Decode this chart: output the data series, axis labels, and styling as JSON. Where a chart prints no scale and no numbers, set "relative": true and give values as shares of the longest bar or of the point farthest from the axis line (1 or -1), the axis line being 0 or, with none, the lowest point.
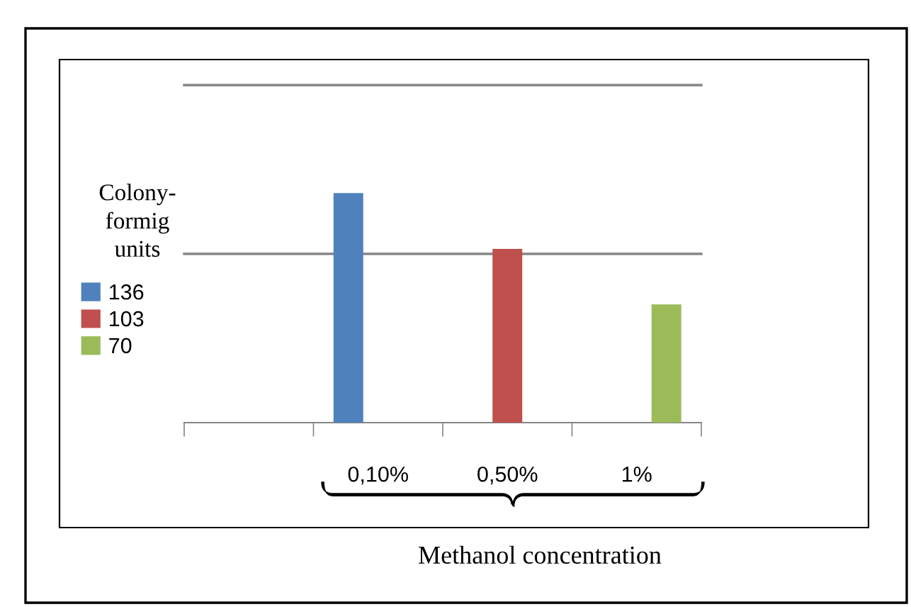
{
  "chart_data": {
    "type": "bar",
    "categories": [
      null,
      "0,10%",
      "0,50%",
      "1%"
    ],
    "series": [
      {
        "name": "136",
        "color": "#4f81bd",
        "values": [
          null,
          1,
          null,
          null
        ]
      },
      {
        "name": "103",
        "color": "#c0504d",
        "values": [
          null,
          null,
          0.757,
          null
        ]
      },
      {
        "name": "70",
        "color": "#9bbb59",
        "values": [
          null,
          null,
          null,
          0.515
        ]
      }
    ],
    "relative": true,
    "ylabel": "Colony-\nformig\nunits",
    "xlabel": "Methanol concentration",
    "ref_lines": [
      {
        "axis": "y",
        "value": 0.735,
        "color": "#868686"
      },
      {
        "axis": "y",
        "value": 1.47,
        "color": "#868686"
      }
    ],
    "legend": "left"
  }
}
